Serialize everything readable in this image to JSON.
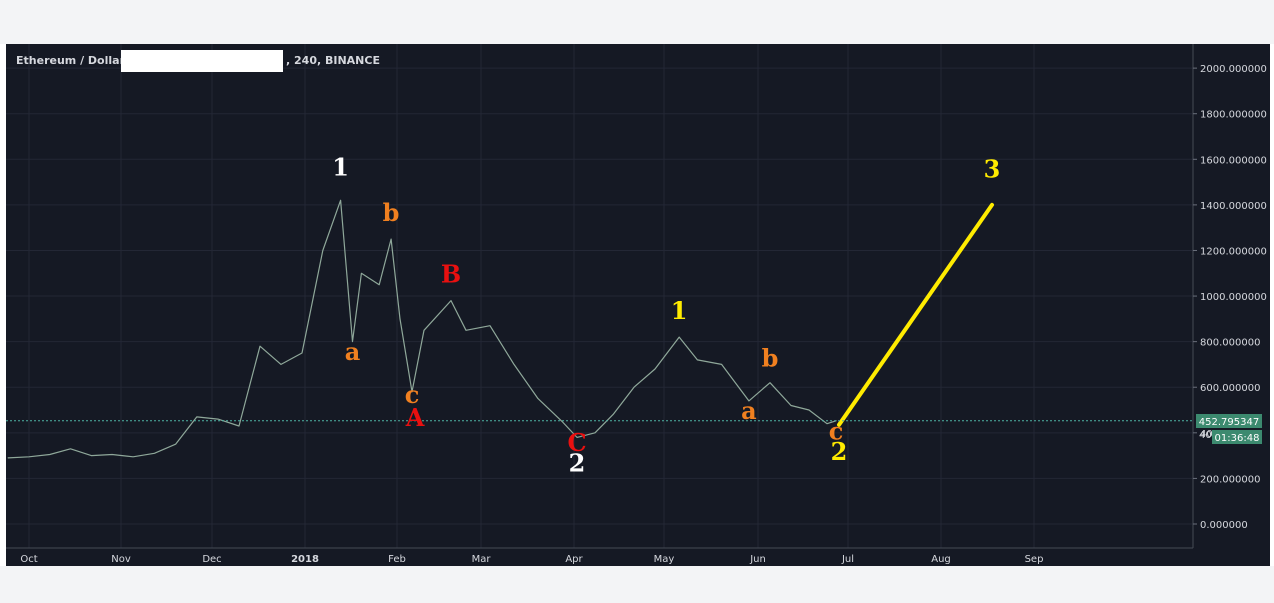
{
  "header": {
    "symbol_prefix": "Ethereum / Dollar",
    "symbol_suffix": ", 240, BINANCE"
  },
  "price_badge": {
    "value": "452.795347",
    "color": "#3c8a6f"
  },
  "time_badge": {
    "value": "01:36:48",
    "color": "#3c8a6f"
  },
  "axis_partial_label": "40",
  "chart_data": {
    "type": "line",
    "title": "",
    "xlabel": "",
    "ylabel": "",
    "x_ticks": [
      "Oct",
      "Nov",
      "Dec",
      "2018",
      "Feb",
      "Mar",
      "Apr",
      "May",
      "Jun",
      "Jul",
      "Aug",
      "Sep"
    ],
    "y_ticks": [
      "0.000000",
      "200.000000",
      "400.000000",
      "600.000000",
      "800.000000",
      "1000.000000",
      "1200.000000",
      "1400.000000",
      "1600.000000",
      "1800.000000",
      "2000.000000"
    ],
    "ylim": [
      0,
      2000
    ],
    "xlim": [
      "2017-09-24",
      "2018-09-30"
    ],
    "series": [
      {
        "color": "#8fa89a",
        "points": [
          [
            "2017-09-24",
            290
          ],
          [
            "2017-10-01",
            295
          ],
          [
            "2017-10-08",
            305
          ],
          [
            "2017-10-15",
            330
          ],
          [
            "2017-10-22",
            300
          ],
          [
            "2017-10-29",
            305
          ],
          [
            "2017-11-05",
            295
          ],
          [
            "2017-11-12",
            310
          ],
          [
            "2017-11-19",
            350
          ],
          [
            "2017-11-26",
            470
          ],
          [
            "2017-12-03",
            460
          ],
          [
            "2017-12-10",
            430
          ],
          [
            "2017-12-17",
            780
          ],
          [
            "2017-12-24",
            700
          ],
          [
            "2017-12-31",
            750
          ],
          [
            "2018-01-07",
            1200
          ],
          [
            "2018-01-13",
            1420
          ],
          [
            "2018-01-17",
            800
          ],
          [
            "2018-01-20",
            1100
          ],
          [
            "2018-01-26",
            1050
          ],
          [
            "2018-01-30",
            1250
          ],
          [
            "2018-02-02",
            900
          ],
          [
            "2018-02-06",
            580
          ],
          [
            "2018-02-10",
            850
          ],
          [
            "2018-02-19",
            980
          ],
          [
            "2018-02-24",
            850
          ],
          [
            "2018-03-04",
            870
          ],
          [
            "2018-03-12",
            700
          ],
          [
            "2018-03-20",
            550
          ],
          [
            "2018-03-28",
            450
          ],
          [
            "2018-04-02",
            380
          ],
          [
            "2018-04-08",
            400
          ],
          [
            "2018-04-14",
            480
          ],
          [
            "2018-04-21",
            600
          ],
          [
            "2018-04-28",
            680
          ],
          [
            "2018-05-06",
            820
          ],
          [
            "2018-05-12",
            720
          ],
          [
            "2018-05-20",
            700
          ],
          [
            "2018-05-29",
            540
          ],
          [
            "2018-06-05",
            620
          ],
          [
            "2018-06-12",
            520
          ],
          [
            "2018-06-18",
            500
          ],
          [
            "2018-06-24",
            440
          ],
          [
            "2018-06-27",
            452.795347
          ]
        ]
      },
      {
        "color": "#ffeb00",
        "points": [
          [
            "2018-06-28",
            435
          ],
          [
            "2018-08-18",
            1400
          ]
        ]
      }
    ],
    "current_price": 452.795347,
    "annotations": [
      {
        "text": "1",
        "color": "#ffffff",
        "x": "2018-01-13",
        "y": 1530
      },
      {
        "text": "a",
        "color": "#f08020",
        "x": "2018-01-17",
        "y": 720
      },
      {
        "text": "b",
        "color": "#f08020",
        "x": "2018-01-30",
        "y": 1330
      },
      {
        "text": "c",
        "color": "#f08020",
        "x": "2018-02-06",
        "y": 530
      },
      {
        "text": "A",
        "color": "#e81010",
        "x": "2018-02-07",
        "y": 430
      },
      {
        "text": "B",
        "color": "#e81010",
        "x": "2018-02-19",
        "y": 1060
      },
      {
        "text": "C",
        "color": "#e81010",
        "x": "2018-04-02",
        "y": 320
      },
      {
        "text": "2",
        "color": "#ffffff",
        "x": "2018-04-02",
        "y": 230
      },
      {
        "text": "1",
        "color": "#ffeb00",
        "x": "2018-05-06",
        "y": 900
      },
      {
        "text": "a",
        "color": "#f08020",
        "x": "2018-05-29",
        "y": 460
      },
      {
        "text": "b",
        "color": "#f08020",
        "x": "2018-06-05",
        "y": 690
      },
      {
        "text": "c",
        "color": "#f08020",
        "x": "2018-06-27",
        "y": 370
      },
      {
        "text": "2",
        "color": "#ffeb00",
        "x": "2018-06-28",
        "y": 280
      },
      {
        "text": "3",
        "color": "#ffeb00",
        "x": "2018-08-18",
        "y": 1520
      }
    ]
  }
}
